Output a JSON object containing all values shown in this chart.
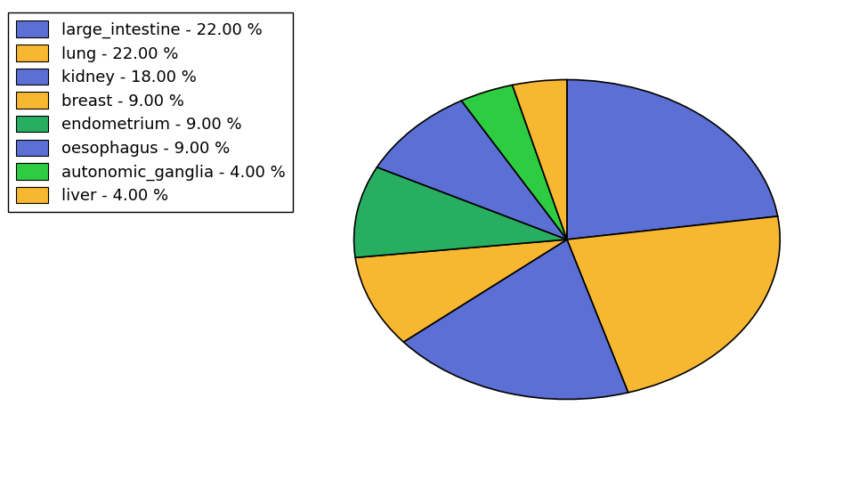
{
  "labels": [
    "large_intestine",
    "lung",
    "kidney",
    "breast",
    "endometrium",
    "oesophagus",
    "autonomic_ganglia",
    "liver"
  ],
  "values": [
    22,
    22,
    18,
    9,
    9,
    9,
    4,
    4
  ],
  "colors": [
    "#5b6fd4",
    "#f7b731",
    "#5b6fd4",
    "#f7b731",
    "#27ae60",
    "#5b6fd4",
    "#2ecc40",
    "#f7b731"
  ],
  "legend_labels": [
    "large_intestine - 22.00 %",
    "lung - 22.00 %",
    "kidney - 18.00 %",
    "breast - 9.00 %",
    "endometrium - 9.00 %",
    "oesophagus - 9.00 %",
    "autonomic_ganglia - 4.00 %",
    "liver - 4.00 %"
  ],
  "legend_colors": [
    "#5b6fd4",
    "#f7b731",
    "#5b6fd4",
    "#f7b731",
    "#27ae60",
    "#5b6fd4",
    "#2ecc40",
    "#f7b731"
  ],
  "startangle": 90,
  "figsize": [
    9.65,
    5.38
  ],
  "dpi": 100,
  "background_color": "#ffffff",
  "edgecolor": "#000000",
  "linewidth": 1.2
}
